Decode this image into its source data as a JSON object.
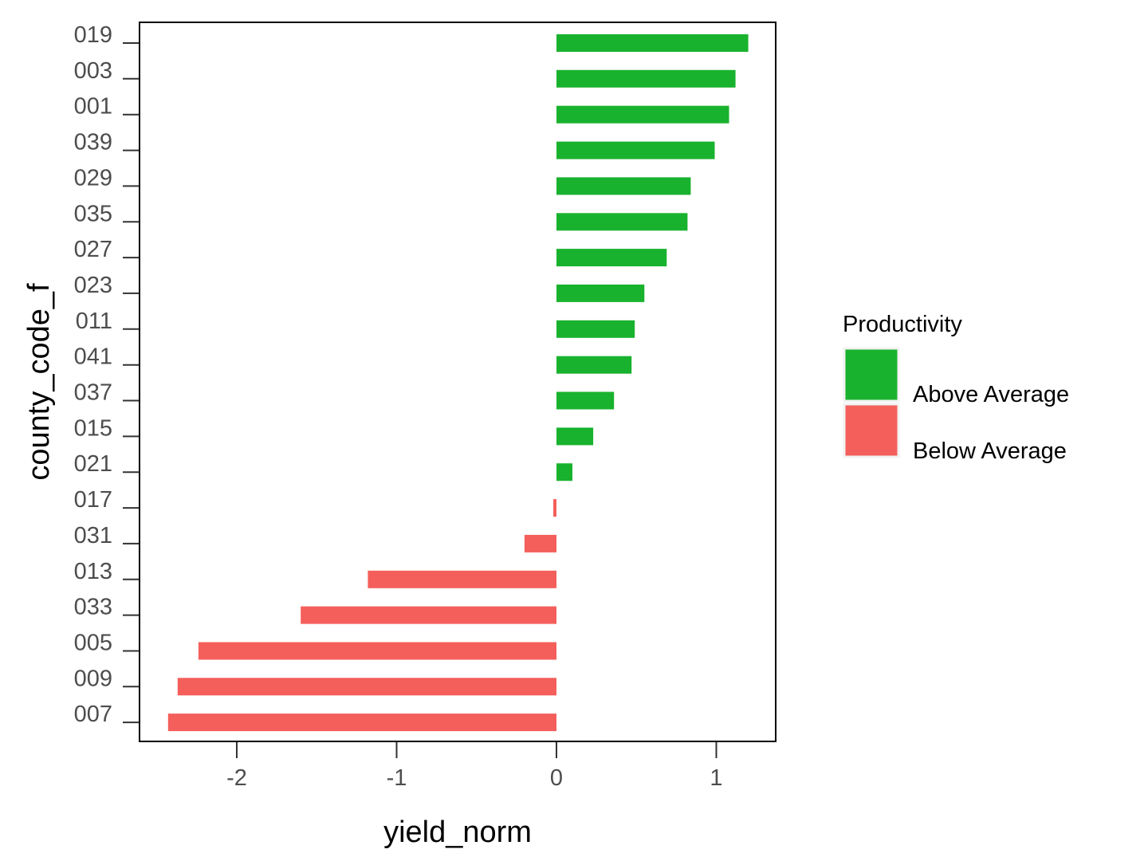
{
  "chart_data": {
    "type": "bar",
    "orientation": "horizontal",
    "title": "",
    "xlabel": "yield_norm",
    "ylabel": "county_code_f",
    "xlim": [
      -2.6,
      1.38
    ],
    "xticks": [
      -2,
      -1,
      0,
      1
    ],
    "xtick_labels": [
      "-2",
      "-1",
      "0",
      "1"
    ],
    "grid": false,
    "legend_position": "right",
    "categories": [
      "019",
      "003",
      "001",
      "039",
      "029",
      "035",
      "027",
      "023",
      "011",
      "041",
      "037",
      "015",
      "021",
      "017",
      "031",
      "013",
      "033",
      "005",
      "009",
      "007"
    ],
    "values": [
      1.2,
      1.12,
      1.08,
      0.99,
      0.84,
      0.82,
      0.69,
      0.55,
      0.49,
      0.47,
      0.36,
      0.23,
      0.1,
      -0.02,
      -0.2,
      -1.18,
      -1.6,
      -2.24,
      -2.37,
      -2.43
    ],
    "groups": [
      "Above Average",
      "Above Average",
      "Above Average",
      "Above Average",
      "Above Average",
      "Above Average",
      "Above Average",
      "Above Average",
      "Above Average",
      "Above Average",
      "Above Average",
      "Above Average",
      "Above Average",
      "Below Average",
      "Below Average",
      "Below Average",
      "Below Average",
      "Below Average",
      "Below Average",
      "Below Average"
    ],
    "legend": {
      "title": "Productivity",
      "entries": [
        {
          "label": "Above Average",
          "color": "#19b22e"
        },
        {
          "label": "Below Average",
          "color": "#f45f5b"
        }
      ]
    }
  }
}
